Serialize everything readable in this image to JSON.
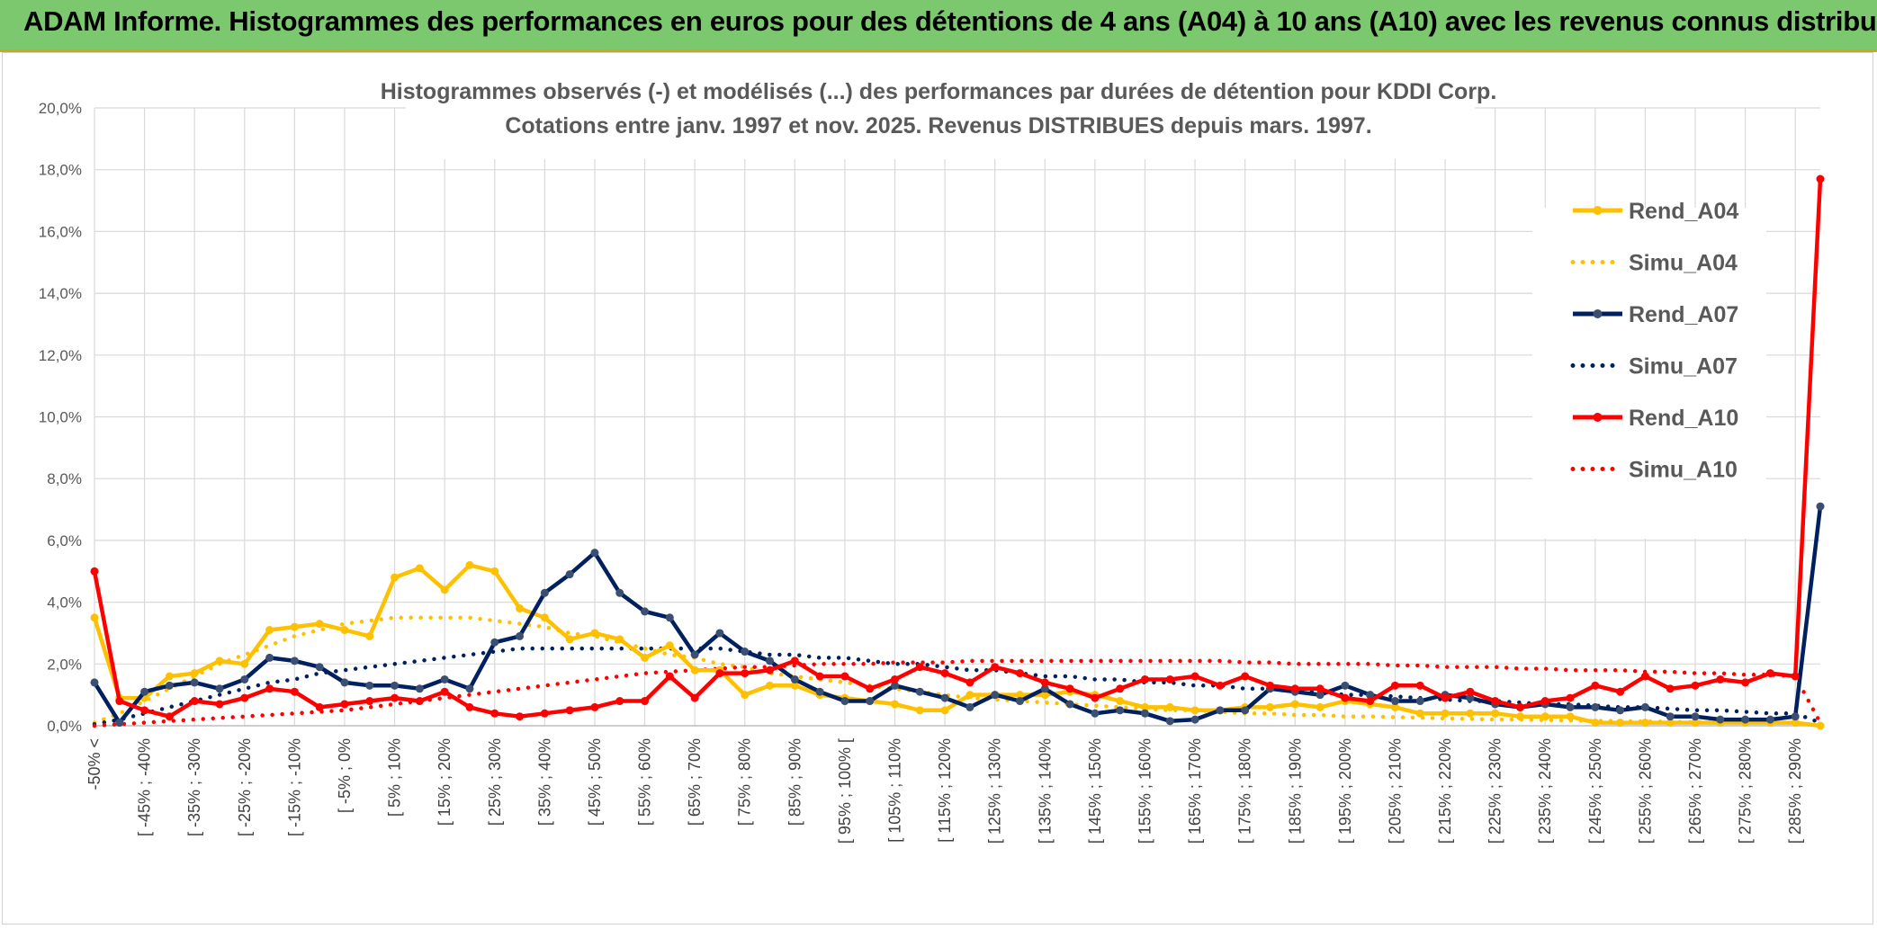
{
  "banner": {
    "title": "ADAM Informe. Histogrammes des performances en euros pour des détentions de 4 ans (A04) à 10 ans (A10) avec les revenus connus distribués"
  },
  "colors": {
    "banner_bg": "#7bc86f",
    "A04": "#ffc000",
    "A07": "#002060",
    "A10": "#ff0000",
    "grid": "#d9d9d9"
  },
  "chart_data": {
    "type": "line",
    "title": "Histogrammes observés (-) et modélisés (...) des performances par durées de détention pour KDDI Corp.",
    "subtitle": "Cotations entre janv. 1997 et nov. 2025. Revenus DISTRIBUES depuis mars. 1997.",
    "xlabel": "",
    "ylabel": "",
    "ylim": [
      0,
      20
    ],
    "y_ticks": [
      "0,0%",
      "2,0%",
      "4,0%",
      "6,0%",
      "8,0%",
      "10,0%",
      "12,0%",
      "14,0%",
      "16,0%",
      "18,0%",
      "20,0%"
    ],
    "x_tick_labels": [
      "-50% <",
      "[ -45% ; -40%",
      "[ -35% ; -30%",
      "[ -25% ; -20%",
      "[ -15% ; -10%",
      "[ -5% ; 0%",
      "[ 5% ; 10%",
      "[ 15% ; 20%",
      "[ 25% ; 30%",
      "[ 35% ; 40%",
      "[ 45% ; 50%",
      "[ 55% ; 60%",
      "[ 65% ; 70%",
      "[ 75% ; 80%",
      "[ 85% ; 90%",
      "[ 95% ; 100% [",
      "[ 105% ; 110%",
      "[ 115% ; 120%",
      "[ 125% ; 130%",
      "[ 135% ; 140%",
      "[ 145% ; 150%",
      "[ 155% ; 160%",
      "[ 165% ; 170%",
      "[ 175% ; 180%",
      "[ 185% ; 190%",
      "[ 195% ; 200%",
      "[ 205% ; 210%",
      "[ 215% ; 220%",
      "[ 225% ; 230%",
      "[ 235% ; 240%",
      "[ 245% ; 250%",
      "[ 255% ; 260%",
      "[ 265% ; 270%",
      "[ 275% ; 280%",
      "[ 285% ; 290%"
    ],
    "n_points": 70,
    "legend_position": "top-right",
    "series": [
      {
        "name": "Rend_A04",
        "style": "solid",
        "color": "#ffc000",
        "values": [
          3.5,
          0.9,
          0.9,
          1.6,
          1.7,
          2.1,
          2.0,
          3.1,
          3.2,
          3.3,
          3.1,
          2.9,
          4.8,
          5.1,
          4.4,
          5.2,
          5.0,
          3.8,
          3.5,
          2.8,
          3.0,
          2.8,
          2.2,
          2.6,
          1.8,
          1.8,
          1.0,
          1.3,
          1.3,
          1.0,
          0.9,
          0.8,
          0.7,
          0.5,
          0.5,
          1.0,
          1.0,
          1.0,
          1.0,
          1.1,
          1.0,
          0.8,
          0.6,
          0.6,
          0.5,
          0.5,
          0.6,
          0.6,
          0.7,
          0.6,
          0.8,
          0.7,
          0.6,
          0.4,
          0.4,
          0.4,
          0.4,
          0.3,
          0.3,
          0.3,
          0.1,
          0.1,
          0.1,
          0.1,
          0.1,
          0.1,
          0.1,
          0.1,
          0.1,
          0.0
        ]
      },
      {
        "name": "Simu_A04",
        "style": "dotted",
        "color": "#ffc000",
        "values": [
          0.1,
          0.4,
          0.8,
          1.2,
          1.6,
          2.0,
          2.3,
          2.6,
          2.9,
          3.1,
          3.3,
          3.4,
          3.5,
          3.5,
          3.5,
          3.5,
          3.4,
          3.3,
          3.2,
          3.0,
          2.9,
          2.7,
          2.5,
          2.3,
          2.2,
          2.0,
          1.9,
          1.7,
          1.6,
          1.5,
          1.4,
          1.3,
          1.2,
          1.1,
          1.0,
          0.9,
          0.85,
          0.8,
          0.75,
          0.7,
          0.65,
          0.6,
          0.55,
          0.5,
          0.5,
          0.45,
          0.4,
          0.4,
          0.35,
          0.35,
          0.3,
          0.3,
          0.28,
          0.26,
          0.24,
          0.22,
          0.2,
          0.2,
          0.18,
          0.17,
          0.16,
          0.15,
          0.14,
          0.13,
          0.12,
          0.11,
          0.1,
          0.1,
          0.1,
          0.0
        ]
      },
      {
        "name": "Rend_A07",
        "style": "solid",
        "color": "#002060",
        "values": [
          1.4,
          0.1,
          1.1,
          1.3,
          1.4,
          1.2,
          1.5,
          2.2,
          2.1,
          1.9,
          1.4,
          1.3,
          1.3,
          1.2,
          1.5,
          1.2,
          2.7,
          2.9,
          4.3,
          4.9,
          5.6,
          4.3,
          3.7,
          3.5,
          2.3,
          3.0,
          2.4,
          2.1,
          1.5,
          1.1,
          0.8,
          0.8,
          1.3,
          1.1,
          0.9,
          0.6,
          1.0,
          0.8,
          1.2,
          0.7,
          0.4,
          0.5,
          0.4,
          0.15,
          0.2,
          0.5,
          0.5,
          1.2,
          1.1,
          1.0,
          1.3,
          1.0,
          0.8,
          0.8,
          1.0,
          0.9,
          0.7,
          0.6,
          0.7,
          0.6,
          0.6,
          0.5,
          0.6,
          0.3,
          0.3,
          0.2,
          0.2,
          0.2,
          0.3,
          7.1
        ]
      },
      {
        "name": "Simu_A07",
        "style": "dotted",
        "color": "#002060",
        "values": [
          0.05,
          0.2,
          0.4,
          0.6,
          0.8,
          1.0,
          1.2,
          1.4,
          1.5,
          1.7,
          1.8,
          1.9,
          2.0,
          2.1,
          2.2,
          2.3,
          2.4,
          2.5,
          2.5,
          2.5,
          2.5,
          2.5,
          2.5,
          2.5,
          2.5,
          2.5,
          2.4,
          2.3,
          2.3,
          2.2,
          2.2,
          2.1,
          2.0,
          2.0,
          1.9,
          1.8,
          1.8,
          1.7,
          1.6,
          1.6,
          1.5,
          1.5,
          1.4,
          1.4,
          1.3,
          1.3,
          1.2,
          1.2,
          1.1,
          1.1,
          1.0,
          1.0,
          0.95,
          0.9,
          0.85,
          0.8,
          0.8,
          0.75,
          0.7,
          0.7,
          0.65,
          0.6,
          0.6,
          0.55,
          0.5,
          0.5,
          0.45,
          0.4,
          0.4,
          0.1
        ]
      },
      {
        "name": "Rend_A10",
        "style": "solid",
        "color": "#ff0000",
        "values": [
          5.0,
          0.8,
          0.5,
          0.3,
          0.8,
          0.7,
          0.9,
          1.2,
          1.1,
          0.6,
          0.7,
          0.8,
          0.9,
          0.8,
          1.1,
          0.6,
          0.4,
          0.3,
          0.4,
          0.5,
          0.6,
          0.8,
          0.8,
          1.6,
          0.9,
          1.7,
          1.7,
          1.8,
          2.1,
          1.6,
          1.6,
          1.2,
          1.5,
          1.9,
          1.7,
          1.4,
          1.9,
          1.7,
          1.4,
          1.2,
          0.9,
          1.2,
          1.5,
          1.5,
          1.6,
          1.3,
          1.6,
          1.3,
          1.2,
          1.2,
          0.9,
          0.8,
          1.3,
          1.3,
          0.9,
          1.1,
          0.8,
          0.6,
          0.8,
          0.9,
          1.3,
          1.1,
          1.6,
          1.2,
          1.3,
          1.5,
          1.4,
          1.7,
          1.6,
          17.7
        ]
      },
      {
        "name": "Simu_A10",
        "style": "dotted",
        "color": "#ff0000",
        "values": [
          0.0,
          0.05,
          0.1,
          0.15,
          0.2,
          0.25,
          0.3,
          0.35,
          0.4,
          0.45,
          0.5,
          0.6,
          0.7,
          0.8,
          0.9,
          1.0,
          1.1,
          1.2,
          1.3,
          1.4,
          1.5,
          1.6,
          1.7,
          1.75,
          1.8,
          1.85,
          1.9,
          1.9,
          1.95,
          2.0,
          2.0,
          2.0,
          2.05,
          2.05,
          2.05,
          2.1,
          2.1,
          2.1,
          2.1,
          2.1,
          2.1,
          2.1,
          2.1,
          2.1,
          2.1,
          2.1,
          2.05,
          2.05,
          2.0,
          2.0,
          2.0,
          2.0,
          1.95,
          1.95,
          1.9,
          1.9,
          1.9,
          1.85,
          1.85,
          1.8,
          1.8,
          1.8,
          1.75,
          1.75,
          1.7,
          1.7,
          1.65,
          1.65,
          1.6,
          0.1
        ]
      }
    ]
  }
}
